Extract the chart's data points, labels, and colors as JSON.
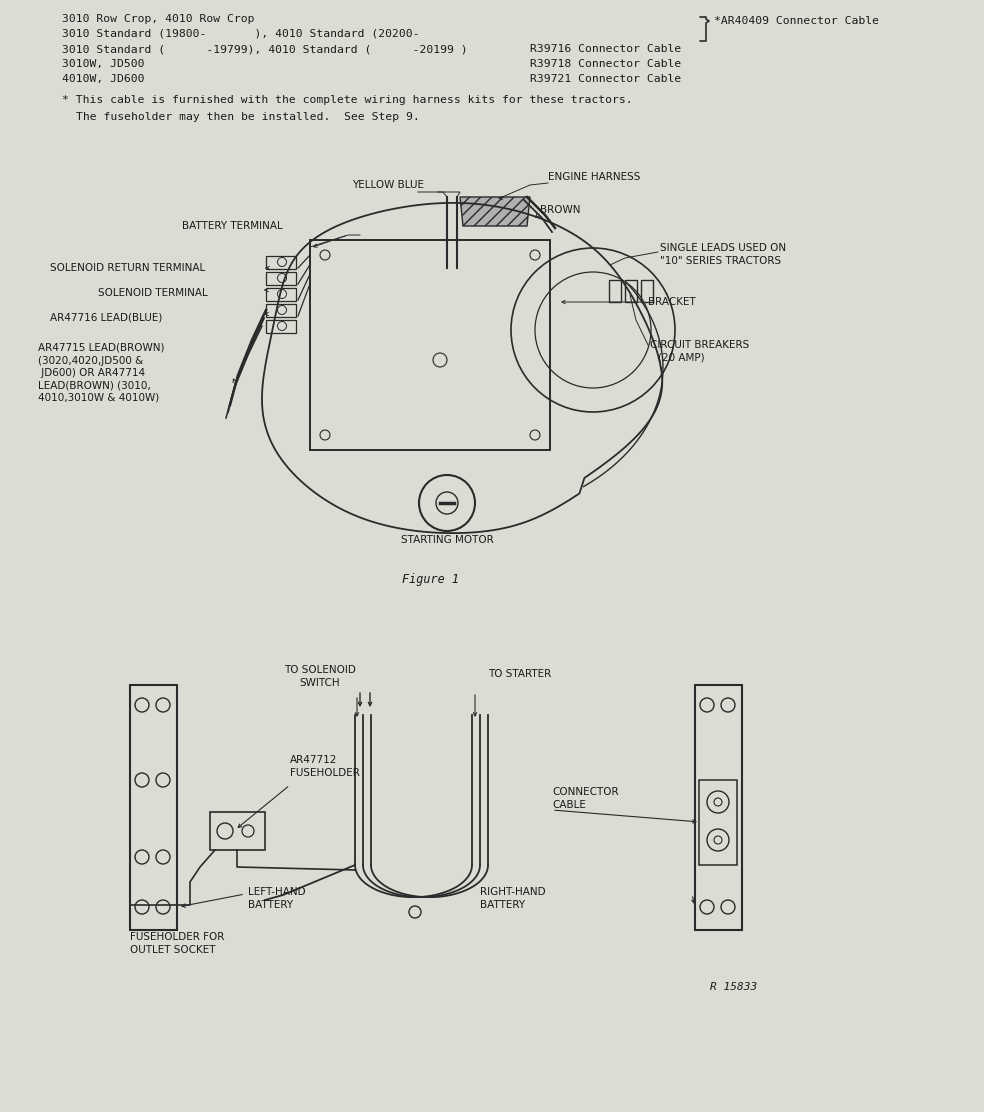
{
  "bg_color": "#dcdcd4",
  "text_color": "#1a1a1a",
  "line_color": "#2a2a2a",
  "fig_width": 9.84,
  "fig_height": 11.12,
  "dpi": 100,
  "header": {
    "line1": "3010 Row Crop, 4010 Row Crop",
    "line2": "3010 Standard (19800-       ), 4010 Standard (20200-",
    "line3": "3010 Standard (      -19799), 4010 Standard (      -20199 )",
    "line4": "3010W, JD500",
    "line5": "4010W, JD600",
    "r1": "R39716 Connector Cable",
    "r2": "R39718 Connector Cable",
    "r3": "R39721 Connector Cable",
    "brace": "*AR40409 Connector Cable"
  },
  "note1": "* This cable is furnished with the complete wiring harness kits for these tractors.",
  "note2": "The fuseholder may then be installed.  See Step 9.",
  "fig1_caption": "Figure 1",
  "fig1_labels": {
    "battery_terminal": "BATTERY TERMINAL",
    "yellow_blue": "YELLOW BLUE",
    "engine_harness": "ENGINE HARNESS",
    "brown": "BROWN",
    "single_leads_1": "SINGLE LEADS USED ON",
    "single_leads_2": "\"10\" SERIES TRACTORS",
    "bracket": "BRACKET",
    "solenoid_return": "SOLENOID RETURN TERMINAL",
    "solenoid_terminal": "SOLENOID TERMINAL",
    "ar47716": "AR47716 LEAD(BLUE)",
    "ar47715_1": "AR47715 LEAD(BROWN)",
    "ar47715_2": "(3020,4020,JD500 &",
    "ar47715_3": " JD600) OR AR47714",
    "ar47715_4": "LEAD(BROWN) (3010,",
    "ar47715_5": "4010,3010W & 4010W)",
    "circuit_1": "CIRCUIT BREAKERS",
    "circuit_2": "(20 AMP)",
    "starting_motor": "STARTING MOTOR"
  },
  "fig2_labels": {
    "to_solenoid_1": "TO SOLENOID",
    "to_solenoid_2": "SWITCH",
    "to_starter": "TO STARTER",
    "ar47712_1": "AR47712",
    "ar47712_2": "FUSEHOLDER",
    "connector_1": "CONNECTOR",
    "connector_2": "CABLE",
    "left_hand_1": "LEFT-HAND",
    "left_hand_2": "BATTERY",
    "right_hand_1": "RIGHT-HAND",
    "right_hand_2": "BATTERY",
    "fuseholder_1": "FUSEHOLDER FOR",
    "fuseholder_2": "OUTLET SOCKET",
    "part_num": "R 15833"
  }
}
